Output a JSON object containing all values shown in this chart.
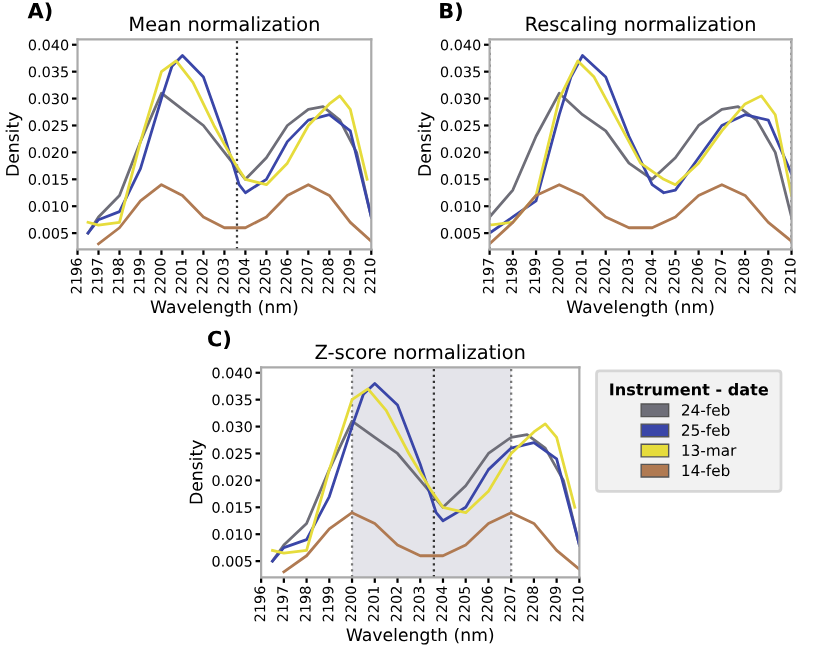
{
  "chart_data": [
    {
      "type": "line",
      "title": "Mean normalization",
      "xlabel": "Wavelength (nm)",
      "ylabel": "Density",
      "annotations": [
        "A)"
      ],
      "xlim": [
        2196,
        2210
      ],
      "xticks": [
        2196,
        2197,
        2198,
        2199,
        2200,
        2201,
        2202,
        2203,
        2204,
        2205,
        2206,
        2207,
        2208,
        2209,
        2210
      ],
      "ylim": [
        0.002,
        0.041
      ],
      "yticks": [
        0.005,
        {
          "value": 0.01,
          "label": "0.010"
        },
        0.015,
        {
          "value": 0.02,
          "label": "0.020"
        },
        0.025,
        {
          "value": 0.03,
          "label": "0.030"
        },
        0.035,
        {
          "value": 0.04,
          "label": "0.040"
        }
      ],
      "ref_lines": [
        {
          "axis": "x",
          "value": 2203.6,
          "color": "#333333",
          "line_style": "dotted"
        }
      ],
      "series": [
        {
          "color": "#6e6e78",
          "x": [
            2196.5,
            2197,
            2198,
            2199,
            2200,
            2201,
            2202,
            2203,
            2204,
            2205,
            2206,
            2207,
            2207.7,
            2208.5,
            2209.3,
            2210
          ],
          "values": [
            0.005,
            0.008,
            0.012,
            0.022,
            0.031,
            0.028,
            0.025,
            0.02,
            0.015,
            0.019,
            0.025,
            0.028,
            0.0285,
            0.026,
            0.02,
            0.008
          ]
        },
        {
          "color": "#3a46a8",
          "x": [
            2196.5,
            2197,
            2198,
            2199,
            2200,
            2200.5,
            2201,
            2202,
            2203,
            2203.7,
            2204,
            2205,
            2206,
            2207,
            2208,
            2209,
            2210
          ],
          "values": [
            0.005,
            0.0075,
            0.009,
            0.017,
            0.03,
            0.036,
            0.038,
            0.034,
            0.023,
            0.014,
            0.0125,
            0.015,
            0.022,
            0.026,
            0.027,
            0.024,
            0.008
          ]
        },
        {
          "color": "#e6dc3c",
          "x": [
            2196.5,
            2197,
            2198,
            2199,
            2200,
            2200.7,
            2201.5,
            2202.5,
            2203.5,
            2204,
            2205,
            2206,
            2207,
            2208,
            2208.5,
            2209,
            2209.8
          ],
          "values": [
            0.007,
            0.0065,
            0.007,
            0.022,
            0.035,
            0.037,
            0.033,
            0.025,
            0.018,
            0.015,
            0.014,
            0.018,
            0.025,
            0.029,
            0.0305,
            0.028,
            0.015
          ]
        },
        {
          "color": "#b07a52",
          "x": [
            2197,
            2198,
            2199,
            2200,
            2201,
            2202,
            2203,
            2204,
            2205,
            2206,
            2207,
            2208,
            2209,
            2210
          ],
          "values": [
            0.003,
            0.006,
            0.011,
            0.014,
            0.012,
            0.008,
            0.006,
            0.006,
            0.008,
            0.012,
            0.014,
            0.012,
            0.007,
            0.0035
          ]
        }
      ]
    },
    {
      "type": "line",
      "title": "Rescaling normalization",
      "xlabel": "Wavelength (nm)",
      "ylabel": "Density",
      "annotations": [
        "B)"
      ],
      "xlim": [
        2197,
        2210
      ],
      "xticks": [
        2197,
        2198,
        2199,
        2200,
        2201,
        2202,
        2203,
        2204,
        2205,
        2206,
        2207,
        2208,
        2209,
        2210
      ],
      "ylim": [
        0.002,
        0.041
      ],
      "yticks": [
        0.005,
        {
          "value": 0.01,
          "label": "0.010"
        },
        0.015,
        {
          "value": 0.02,
          "label": "0.020"
        },
        0.025,
        {
          "value": 0.03,
          "label": "0.030"
        },
        0.035,
        {
          "value": 0.04,
          "label": "0.040"
        }
      ],
      "ref_lines": [
        {
          "axis": "x",
          "value": 2197,
          "color": "#333333",
          "line_style": "dotted"
        },
        {
          "axis": "x",
          "value": 2210,
          "color": "#333333",
          "line_style": "dotted"
        }
      ],
      "series": [
        {
          "color": "#6e6e78",
          "x": [
            2197,
            2198,
            2199,
            2200,
            2201,
            2202,
            2203,
            2204,
            2205,
            2206,
            2207,
            2207.7,
            2208.5,
            2209.3,
            2210
          ],
          "values": [
            0.008,
            0.013,
            0.023,
            0.031,
            0.027,
            0.024,
            0.018,
            0.015,
            0.019,
            0.025,
            0.028,
            0.0285,
            0.026,
            0.02,
            0.008
          ]
        },
        {
          "color": "#3a46a8",
          "x": [
            2197,
            2198,
            2199,
            2200,
            2200.5,
            2201,
            2202,
            2203,
            2204,
            2204.5,
            2205,
            2206,
            2207,
            2208,
            2209,
            2210
          ],
          "values": [
            0.005,
            0.008,
            0.011,
            0.027,
            0.034,
            0.038,
            0.034,
            0.023,
            0.014,
            0.0125,
            0.013,
            0.019,
            0.025,
            0.027,
            0.026,
            0.016
          ]
        },
        {
          "color": "#e6dc3c",
          "x": [
            2197,
            2198,
            2199,
            2200,
            2200.8,
            2201.5,
            2202.5,
            2203.5,
            2204.5,
            2205,
            2206,
            2207,
            2208,
            2208.7,
            2209.3,
            2210
          ],
          "values": [
            0.0065,
            0.007,
            0.012,
            0.03,
            0.037,
            0.034,
            0.026,
            0.018,
            0.015,
            0.014,
            0.018,
            0.024,
            0.029,
            0.0305,
            0.027,
            0.012
          ]
        },
        {
          "color": "#b07a52",
          "x": [
            2197,
            2198,
            2199,
            2200,
            2201,
            2202,
            2203,
            2204,
            2205,
            2206,
            2207,
            2208,
            2209,
            2210
          ],
          "values": [
            0.003,
            0.007,
            0.012,
            0.014,
            0.012,
            0.008,
            0.006,
            0.006,
            0.008,
            0.012,
            0.014,
            0.012,
            0.007,
            0.0035
          ]
        }
      ]
    },
    {
      "type": "line",
      "title": "Z-score normalization",
      "xlabel": "Wavelength (nm)",
      "ylabel": "Density",
      "annotations": [
        "C)"
      ],
      "legend": "right",
      "legend_title": "Instrument - date",
      "xlim": [
        2196,
        2210
      ],
      "xticks": [
        2196,
        2197,
        2198,
        2199,
        2200,
        2201,
        2202,
        2203,
        2204,
        2205,
        2206,
        2207,
        2208,
        2209,
        2210
      ],
      "ylim": [
        0.002,
        0.041
      ],
      "yticks": [
        0.005,
        {
          "value": 0.01,
          "label": "0.010"
        },
        0.015,
        {
          "value": 0.02,
          "label": "0.020"
        },
        0.025,
        {
          "value": 0.03,
          "label": "0.030"
        },
        0.035,
        {
          "value": 0.04,
          "label": "0.040"
        }
      ],
      "bands": [
        {
          "axis": "x",
          "from": 2200,
          "to": 2207,
          "color": "#e4e4ea"
        }
      ],
      "ref_lines": [
        {
          "axis": "x",
          "value": 2200,
          "color": "#777777",
          "line_style": "dotted"
        },
        {
          "axis": "x",
          "value": 2203.6,
          "color": "#333333",
          "line_style": "dotted"
        },
        {
          "axis": "x",
          "value": 2207,
          "color": "#777777",
          "line_style": "dotted"
        }
      ],
      "series": [
        {
          "name": "24-feb",
          "color": "#6e6e78",
          "x": [
            2196.5,
            2197,
            2198,
            2199,
            2200,
            2201,
            2202,
            2203,
            2204,
            2205,
            2206,
            2207,
            2207.7,
            2208.5,
            2209.3,
            2210
          ],
          "values": [
            0.005,
            0.008,
            0.012,
            0.022,
            0.031,
            0.028,
            0.025,
            0.02,
            0.015,
            0.019,
            0.025,
            0.028,
            0.0285,
            0.026,
            0.02,
            0.008
          ]
        },
        {
          "name": "25-feb",
          "color": "#3a46a8",
          "x": [
            2196.5,
            2197,
            2198,
            2199,
            2200,
            2200.5,
            2201,
            2202,
            2203,
            2203.7,
            2204,
            2205,
            2206,
            2207,
            2208,
            2209,
            2210
          ],
          "values": [
            0.005,
            0.0075,
            0.009,
            0.017,
            0.03,
            0.036,
            0.038,
            0.034,
            0.023,
            0.014,
            0.0125,
            0.015,
            0.022,
            0.026,
            0.027,
            0.024,
            0.008
          ]
        },
        {
          "name": "13-mar",
          "color": "#e6dc3c",
          "x": [
            2196.5,
            2197,
            2198,
            2199,
            2200,
            2200.7,
            2201.5,
            2202.5,
            2203.5,
            2204,
            2205,
            2206,
            2207,
            2208,
            2208.5,
            2209,
            2209.8
          ],
          "values": [
            0.007,
            0.0065,
            0.007,
            0.022,
            0.035,
            0.037,
            0.033,
            0.025,
            0.018,
            0.015,
            0.014,
            0.018,
            0.025,
            0.029,
            0.0305,
            0.028,
            0.015
          ]
        },
        {
          "name": "14-feb",
          "color": "#b07a52",
          "x": [
            2197,
            2198,
            2199,
            2200,
            2201,
            2202,
            2203,
            2204,
            2205,
            2206,
            2207,
            2208,
            2209,
            2210
          ],
          "values": [
            0.003,
            0.006,
            0.011,
            0.014,
            0.012,
            0.008,
            0.006,
            0.006,
            0.008,
            0.012,
            0.014,
            0.012,
            0.007,
            0.0035
          ]
        }
      ]
    }
  ]
}
